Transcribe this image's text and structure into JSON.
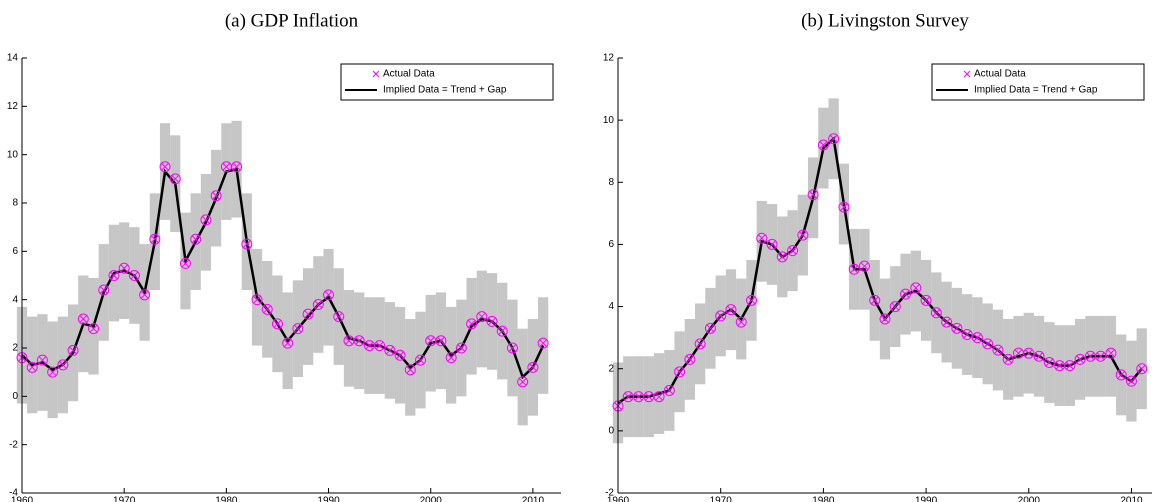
{
  "chart_data": [
    {
      "type": "line",
      "title": "(a) GDP Inflation",
      "x": [
        1960,
        1961,
        1962,
        1963,
        1964,
        1965,
        1966,
        1967,
        1968,
        1969,
        1970,
        1971,
        1972,
        1973,
        1974,
        1975,
        1976,
        1977,
        1978,
        1979,
        1980,
        1981,
        1982,
        1983,
        1984,
        1985,
        1986,
        1987,
        1988,
        1989,
        1990,
        1991,
        1992,
        1993,
        1994,
        1995,
        1996,
        1997,
        1998,
        1999,
        2000,
        2001,
        2002,
        2003,
        2004,
        2005,
        2006,
        2007,
        2008,
        2009,
        2010,
        2011
      ],
      "xlim": [
        1960,
        2012.75
      ],
      "xticks": [
        1960,
        1970,
        1980,
        1990,
        2000,
        2010
      ],
      "ylim": [
        -4,
        14
      ],
      "yticks": [
        -4,
        -2,
        0,
        2,
        4,
        6,
        8,
        10,
        12,
        14
      ],
      "legend": "upper right",
      "band": {
        "color": "#b3b3b3",
        "lower": [
          -0.3,
          -0.7,
          -0.6,
          -0.9,
          -0.7,
          -0.2,
          1.0,
          0.9,
          2.3,
          3.1,
          3.2,
          3.0,
          2.3,
          4.4,
          7.3,
          6.8,
          3.6,
          4.4,
          5.2,
          6.2,
          7.3,
          7.4,
          4.4,
          2.1,
          1.6,
          1.0,
          0.3,
          0.8,
          1.3,
          1.8,
          2.1,
          1.3,
          0.4,
          0.3,
          0.1,
          0.1,
          -0.1,
          -0.3,
          -0.8,
          -0.5,
          0.2,
          0.3,
          -0.3,
          0.0,
          0.9,
          1.2,
          1.1,
          0.7,
          0.0,
          -1.2,
          -0.8,
          0.1
        ],
        "upper": [
          3.7,
          3.3,
          3.4,
          3.1,
          3.3,
          3.8,
          5.0,
          4.9,
          6.3,
          7.1,
          7.2,
          7.0,
          6.3,
          8.4,
          11.3,
          10.8,
          7.6,
          8.4,
          9.2,
          10.2,
          11.3,
          11.4,
          8.4,
          6.1,
          5.6,
          5.0,
          4.3,
          4.8,
          5.3,
          5.8,
          6.1,
          5.3,
          4.4,
          4.3,
          4.1,
          4.1,
          3.9,
          3.7,
          3.2,
          3.5,
          4.2,
          4.3,
          3.7,
          4.0,
          4.9,
          5.2,
          5.1,
          4.7,
          4.0,
          2.8,
          3.2,
          4.1
        ]
      },
      "series": [
        {
          "name": "Actual Data",
          "color": "#ff00ff",
          "marker": "x",
          "values": [
            1.6,
            1.2,
            1.5,
            1.0,
            1.3,
            1.9,
            3.2,
            2.8,
            4.4,
            5.0,
            5.3,
            5.0,
            4.2,
            6.5,
            9.5,
            9.0,
            5.5,
            6.5,
            7.3,
            8.3,
            9.5,
            9.5,
            6.3,
            4.0,
            3.6,
            3.0,
            2.2,
            2.8,
            3.4,
            3.8,
            4.2,
            3.3,
            2.3,
            2.3,
            2.1,
            2.1,
            1.9,
            1.7,
            1.1,
            1.5,
            2.3,
            2.3,
            1.6,
            2.0,
            3.0,
            3.3,
            3.1,
            2.7,
            2.0,
            0.6,
            1.2,
            2.2
          ]
        },
        {
          "name": "Implied Data = Trend + Gap",
          "color": "#000000",
          "values": [
            1.7,
            1.3,
            1.4,
            1.1,
            1.3,
            1.8,
            3.0,
            2.9,
            4.3,
            5.1,
            5.2,
            5.0,
            4.3,
            6.4,
            9.3,
            8.8,
            5.6,
            6.4,
            7.2,
            8.2,
            9.3,
            9.4,
            6.4,
            4.1,
            3.6,
            3.0,
            2.3,
            2.8,
            3.3,
            3.8,
            4.1,
            3.3,
            2.4,
            2.3,
            2.1,
            2.1,
            1.9,
            1.7,
            1.2,
            1.5,
            2.2,
            2.3,
            1.7,
            2.0,
            2.9,
            3.2,
            3.1,
            2.7,
            2.0,
            0.8,
            1.2,
            2.1
          ]
        }
      ]
    },
    {
      "type": "line",
      "title": "(b) Livingston Survey",
      "x": [
        1960,
        1961,
        1962,
        1963,
        1964,
        1965,
        1966,
        1967,
        1968,
        1969,
        1970,
        1971,
        1972,
        1973,
        1974,
        1975,
        1976,
        1977,
        1978,
        1979,
        1980,
        1981,
        1982,
        1983,
        1984,
        1985,
        1986,
        1987,
        1988,
        1989,
        1990,
        1991,
        1992,
        1993,
        1994,
        1995,
        1996,
        1997,
        1998,
        1999,
        2000,
        2001,
        2002,
        2003,
        2004,
        2005,
        2006,
        2007,
        2008,
        2009,
        2010,
        2011
      ],
      "xlim": [
        1960,
        2012
      ],
      "xticks": [
        1960,
        1970,
        1980,
        1990,
        2000,
        2010
      ],
      "ylim": [
        -2,
        12
      ],
      "yticks": [
        -2,
        0,
        2,
        4,
        6,
        8,
        10,
        12
      ],
      "legend": "upper right",
      "band": {
        "color": "#b3b3b3",
        "lower": [
          -0.4,
          -0.2,
          -0.2,
          -0.2,
          -0.1,
          0.0,
          0.6,
          1.0,
          1.5,
          2.0,
          2.4,
          2.6,
          2.3,
          2.9,
          4.8,
          4.7,
          4.3,
          4.5,
          5.0,
          6.2,
          7.8,
          8.1,
          6.0,
          3.9,
          3.9,
          2.9,
          2.3,
          2.7,
          3.1,
          3.2,
          2.9,
          2.5,
          2.2,
          2.0,
          1.8,
          1.7,
          1.5,
          1.3,
          1.0,
          1.1,
          1.2,
          1.1,
          0.9,
          0.8,
          0.8,
          1.0,
          1.1,
          1.1,
          1.1,
          0.5,
          0.3,
          0.7
        ],
        "upper": [
          2.2,
          2.4,
          2.4,
          2.4,
          2.5,
          2.6,
          3.2,
          3.6,
          4.1,
          4.6,
          5.0,
          5.2,
          4.9,
          5.5,
          7.4,
          7.3,
          6.9,
          7.1,
          7.6,
          8.8,
          10.4,
          10.7,
          8.6,
          6.5,
          6.5,
          5.5,
          4.9,
          5.3,
          5.7,
          5.8,
          5.5,
          5.1,
          4.8,
          4.6,
          4.4,
          4.3,
          4.1,
          3.9,
          3.6,
          3.7,
          3.8,
          3.7,
          3.5,
          3.4,
          3.4,
          3.6,
          3.7,
          3.7,
          3.7,
          3.1,
          2.9,
          3.3
        ]
      },
      "series": [
        {
          "name": "Actual Data",
          "color": "#ff00ff",
          "marker": "x",
          "values": [
            0.8,
            1.1,
            1.1,
            1.1,
            1.1,
            1.3,
            1.9,
            2.3,
            2.8,
            3.3,
            3.7,
            3.9,
            3.5,
            4.2,
            6.2,
            6.0,
            5.6,
            5.8,
            6.3,
            7.6,
            9.2,
            9.4,
            7.2,
            5.2,
            5.3,
            4.2,
            3.6,
            4.0,
            4.4,
            4.6,
            4.2,
            3.8,
            3.5,
            3.3,
            3.1,
            3.0,
            2.8,
            2.6,
            2.3,
            2.5,
            2.5,
            2.4,
            2.2,
            2.1,
            2.1,
            2.3,
            2.4,
            2.4,
            2.5,
            1.8,
            1.6,
            2.0
          ]
        },
        {
          "name": "Implied Data = Trend + Gap",
          "color": "#000000",
          "values": [
            0.9,
            1.1,
            1.1,
            1.1,
            1.2,
            1.3,
            1.9,
            2.3,
            2.8,
            3.3,
            3.7,
            3.9,
            3.6,
            4.2,
            6.1,
            6.0,
            5.6,
            5.8,
            6.3,
            7.5,
            9.1,
            9.4,
            7.3,
            5.2,
            5.2,
            4.2,
            3.6,
            4.0,
            4.4,
            4.5,
            4.2,
            3.8,
            3.5,
            3.3,
            3.1,
            3.0,
            2.8,
            2.6,
            2.3,
            2.4,
            2.5,
            2.4,
            2.2,
            2.1,
            2.1,
            2.3,
            2.4,
            2.4,
            2.4,
            1.8,
            1.6,
            2.0
          ]
        }
      ]
    }
  ]
}
